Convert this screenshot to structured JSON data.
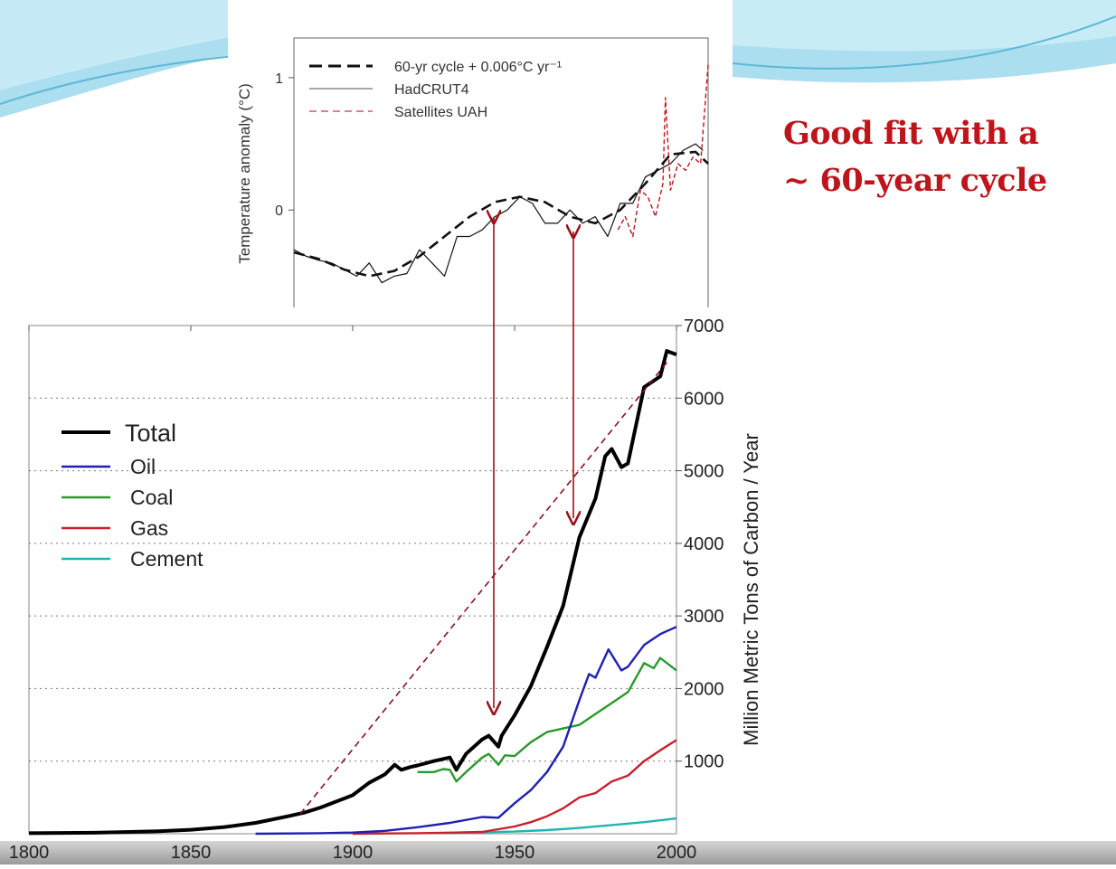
{
  "slide": {
    "callout_line1": "Good fit with a",
    "callout_line2": "~ 60-year cycle",
    "accent_color": "#c0141c"
  },
  "chart_data": [
    {
      "type": "line",
      "ylabel": "Temperature anomaly (°C)",
      "xlim": [
        1850,
        2015
      ],
      "ylim": [
        -0.75,
        1.3
      ],
      "yticks": [
        0,
        1
      ],
      "ytick_labels": [
        "0",
        "1"
      ],
      "legend": [
        {
          "label": "60-yr cycle + 0.006°C yr⁻¹",
          "style": "dashed",
          "color": "#111111"
        },
        {
          "label": "HadCRUT4",
          "style": "solid",
          "color": "#111111"
        },
        {
          "label": "Satellites UAH",
          "style": "dashed",
          "color": "#c0141c"
        }
      ],
      "series": [
        {
          "name": "60-yr cycle + 0.006°C yr⁻¹",
          "x": [
            1850,
            1860,
            1870,
            1880,
            1890,
            1900,
            1910,
            1920,
            1930,
            1940,
            1950,
            1960,
            1970,
            1980,
            1990,
            2000,
            2010,
            2015
          ],
          "y": [
            -0.32,
            -0.37,
            -0.45,
            -0.5,
            -0.46,
            -0.35,
            -0.2,
            -0.05,
            0.06,
            0.1,
            0.06,
            -0.05,
            -0.1,
            0.0,
            0.2,
            0.42,
            0.44,
            0.35
          ]
        },
        {
          "name": "HadCRUT4",
          "x": [
            1850,
            1855,
            1860,
            1865,
            1870,
            1875,
            1880,
            1885,
            1890,
            1895,
            1900,
            1905,
            1910,
            1915,
            1920,
            1925,
            1930,
            1935,
            1940,
            1945,
            1950,
            1955,
            1960,
            1965,
            1970,
            1975,
            1980,
            1985,
            1990,
            1995,
            2000,
            2005,
            2010,
            2013
          ],
          "y": [
            -0.3,
            -0.35,
            -0.38,
            -0.4,
            -0.45,
            -0.5,
            -0.4,
            -0.55,
            -0.5,
            -0.48,
            -0.3,
            -0.4,
            -0.5,
            -0.2,
            -0.2,
            -0.15,
            -0.05,
            0.0,
            0.1,
            0.05,
            -0.1,
            -0.1,
            0.0,
            -0.1,
            -0.05,
            -0.2,
            0.05,
            0.05,
            0.25,
            0.3,
            0.35,
            0.45,
            0.5,
            0.45
          ]
        },
        {
          "name": "Satellites UAH",
          "x": [
            1979,
            1982,
            1985,
            1988,
            1991,
            1994,
            1997,
            1998,
            2000,
            2003,
            2006,
            2009,
            2012,
            2015
          ],
          "y": [
            -0.15,
            -0.05,
            -0.2,
            0.15,
            0.1,
            -0.05,
            0.2,
            0.85,
            0.15,
            0.35,
            0.3,
            0.4,
            0.35,
            1.1
          ]
        }
      ]
    },
    {
      "type": "line",
      "ylabel": "Million Metric Tons of Carbon / Year",
      "xlim": [
        1800,
        2000
      ],
      "ylim": [
        0,
        7000
      ],
      "xticks": [
        1800,
        1850,
        1900,
        1950,
        2000
      ],
      "xtick_labels": [
        "1800",
        "1850",
        "1900",
        "1950",
        "2000"
      ],
      "yticks": [
        1000,
        2000,
        3000,
        4000,
        5000,
        6000,
        7000
      ],
      "ytick_labels": [
        "1000",
        "2000",
        "3000",
        "4000",
        "5000",
        "6000",
        "7000"
      ],
      "grid": "horizontal dotted",
      "legend_position": "upper-left",
      "series": [
        {
          "name": "Total",
          "color": "#000000",
          "x": [
            1800,
            1820,
            1840,
            1850,
            1860,
            1870,
            1880,
            1885,
            1890,
            1900,
            1905,
            1910,
            1913,
            1915,
            1918,
            1920,
            1925,
            1930,
            1932,
            1935,
            1940,
            1942,
            1945,
            1946,
            1950,
            1955,
            1960,
            1965,
            1970,
            1975,
            1978,
            1980,
            1983,
            1985,
            1990,
            1995,
            1997,
            2000
          ],
          "y": [
            8,
            14,
            35,
            55,
            90,
            150,
            240,
            290,
            360,
            530,
            700,
            820,
            950,
            880,
            920,
            940,
            1000,
            1050,
            880,
            1100,
            1300,
            1350,
            1200,
            1350,
            1630,
            2030,
            2570,
            3140,
            4080,
            4620,
            5200,
            5300,
            5050,
            5100,
            6150,
            6300,
            6650,
            6600
          ]
        },
        {
          "name": "Oil",
          "color": "#1f1fb4",
          "x": [
            1870,
            1890,
            1900,
            1910,
            1920,
            1930,
            1940,
            1945,
            1950,
            1955,
            1960,
            1965,
            1970,
            1973,
            1975,
            1979,
            1983,
            1985,
            1990,
            1995,
            2000
          ],
          "y": [
            0,
            8,
            16,
            40,
            90,
            150,
            230,
            220,
            420,
            600,
            850,
            1200,
            1840,
            2200,
            2150,
            2540,
            2250,
            2300,
            2600,
            2750,
            2850
          ]
        },
        {
          "name": "Coal",
          "color": "#2a9a2a",
          "x": [
            1920,
            1925,
            1928,
            1930,
            1932,
            1935,
            1940,
            1942,
            1945,
            1947,
            1950,
            1955,
            1960,
            1965,
            1970,
            1975,
            1980,
            1985,
            1990,
            1993,
            1995,
            2000
          ],
          "y": [
            850,
            850,
            890,
            880,
            720,
            850,
            1050,
            1100,
            950,
            1080,
            1070,
            1260,
            1400,
            1450,
            1500,
            1650,
            1800,
            1950,
            2350,
            2280,
            2420,
            2250
          ]
        },
        {
          "name": "Gas",
          "color": "#c8202c",
          "x": [
            1900,
            1910,
            1920,
            1930,
            1940,
            1950,
            1955,
            1960,
            1965,
            1970,
            1975,
            1980,
            1985,
            1990,
            1995,
            2000
          ],
          "y": [
            0,
            4,
            8,
            15,
            25,
            100,
            160,
            240,
            350,
            500,
            560,
            720,
            800,
            1000,
            1150,
            1290
          ]
        },
        {
          "name": "Cement",
          "color": "#1fb4b4",
          "x": [
            1930,
            1940,
            1950,
            1960,
            1970,
            1980,
            1990,
            2000
          ],
          "y": [
            10,
            20,
            30,
            50,
            80,
            120,
            160,
            210
          ]
        }
      ]
    }
  ]
}
